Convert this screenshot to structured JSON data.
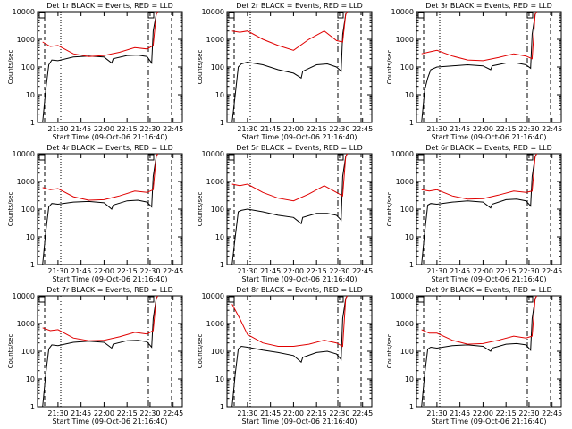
{
  "colors": {
    "events": "#000000",
    "lld": "#e00000",
    "background": "#ffffff"
  },
  "axes": {
    "xlabel": "Start Time (09-Oct-06 21:16:40)",
    "ylabel": "Counts/sec",
    "xticks": [
      "21:30",
      "21:45",
      "22:00",
      "22:15",
      "22:30",
      "22:45"
    ],
    "yticks": [
      "1",
      "10",
      "100",
      "1000",
      "10000"
    ]
  },
  "chart_data": [
    {
      "type": "line",
      "title": "Det 1r BLACK = Events, RED = LLD",
      "xlabel": "Start Time (09-Oct-06 21:16:40)",
      "ylabel": "Counts/sec",
      "yscale": "log",
      "ylim": [
        1,
        10000
      ],
      "x_ticks": [
        "21:30",
        "21:45",
        "22:00",
        "22:15",
        "22:30",
        "22:45"
      ],
      "y_ticks": [
        "1",
        "10",
        "100",
        "1000",
        "10000"
      ],
      "series": [
        {
          "name": "Events",
          "color": "#000000",
          "x": [
            "21:20",
            "21:22",
            "21:24",
            "21:26",
            "21:30",
            "21:40",
            "21:50",
            "22:00",
            "22:05",
            "22:06",
            "22:15",
            "22:22",
            "22:28",
            "22:31",
            "22:32",
            "22:34",
            "22:35"
          ],
          "values": [
            1,
            15,
            120,
            180,
            170,
            230,
            250,
            230,
            140,
            200,
            260,
            270,
            240,
            140,
            2000,
            8000,
            10000
          ]
        },
        {
          "name": "LLD",
          "color": "#e00000",
          "x": [
            "21:20",
            "21:25",
            "21:30",
            "21:40",
            "21:50",
            "22:00",
            "22:10",
            "22:20",
            "22:28",
            "22:32",
            "22:34",
            "22:35"
          ],
          "values": [
            800,
            550,
            600,
            300,
            240,
            260,
            340,
            500,
            450,
            600,
            8000,
            10000
          ]
        }
      ]
    },
    {
      "type": "line",
      "title": "Det 2r BLACK = Events, RED = LLD",
      "xlabel": "Start Time (09-Oct-06 21:16:40)",
      "ylabel": "Counts/sec",
      "yscale": "log",
      "ylim": [
        1,
        10000
      ],
      "x_ticks": [
        "21:30",
        "21:45",
        "22:00",
        "22:15",
        "22:30",
        "22:45"
      ],
      "y_ticks": [
        "1",
        "10",
        "100",
        "1000",
        "10000"
      ],
      "series": [
        {
          "name": "Events",
          "color": "#000000",
          "x": [
            "21:20",
            "21:22",
            "21:24",
            "21:26",
            "21:30",
            "21:40",
            "21:50",
            "22:00",
            "22:05",
            "22:06",
            "22:15",
            "22:22",
            "22:28",
            "22:31",
            "22:32",
            "22:34",
            "22:35"
          ],
          "values": [
            1,
            10,
            100,
            130,
            150,
            120,
            80,
            60,
            40,
            70,
            120,
            130,
            100,
            70,
            1500,
            8000,
            10000
          ]
        },
        {
          "name": "LLD",
          "color": "#e00000",
          "x": [
            "21:20",
            "21:25",
            "21:30",
            "21:40",
            "21:50",
            "22:00",
            "22:10",
            "22:20",
            "22:28",
            "22:32",
            "22:34",
            "22:35"
          ],
          "values": [
            2000,
            1800,
            2000,
            1000,
            600,
            400,
            1000,
            2000,
            900,
            800,
            8000,
            10000
          ]
        }
      ]
    },
    {
      "type": "line",
      "title": "Det 3r BLACK = Events, RED = LLD",
      "xlabel": "Start Time (09-Oct-06 21:16:40)",
      "ylabel": "Counts/sec",
      "yscale": "log",
      "ylim": [
        1,
        10000
      ],
      "x_ticks": [
        "21:30",
        "21:45",
        "22:00",
        "22:15",
        "22:30",
        "22:45"
      ],
      "y_ticks": [
        "1",
        "10",
        "100",
        "1000",
        "10000"
      ],
      "series": [
        {
          "name": "Events",
          "color": "#000000",
          "x": [
            "21:20",
            "21:22",
            "21:24",
            "21:26",
            "21:30",
            "21:40",
            "21:50",
            "22:00",
            "22:05",
            "22:06",
            "22:15",
            "22:22",
            "22:28",
            "22:31",
            "22:32",
            "22:34",
            "22:35"
          ],
          "values": [
            1,
            15,
            40,
            80,
            100,
            110,
            120,
            110,
            80,
            110,
            140,
            140,
            120,
            90,
            1500,
            8000,
            10000
          ]
        },
        {
          "name": "LLD",
          "color": "#e00000",
          "x": [
            "21:20",
            "21:25",
            "21:30",
            "21:40",
            "21:50",
            "22:00",
            "22:10",
            "22:20",
            "22:28",
            "22:32",
            "22:34",
            "22:35"
          ],
          "values": [
            300,
            350,
            400,
            250,
            180,
            170,
            220,
            300,
            250,
            200,
            8000,
            10000
          ]
        }
      ]
    },
    {
      "type": "line",
      "title": "Det 4r BLACK = Events, RED = LLD",
      "xlabel": "Start Time (09-Oct-06 21:16:40)",
      "ylabel": "Counts/sec",
      "yscale": "log",
      "ylim": [
        1,
        10000
      ],
      "x_ticks": [
        "21:30",
        "21:45",
        "22:00",
        "22:15",
        "22:30",
        "22:45"
      ],
      "y_ticks": [
        "1",
        "10",
        "100",
        "1000",
        "10000"
      ],
      "series": [
        {
          "name": "Events",
          "color": "#000000",
          "x": [
            "21:20",
            "21:22",
            "21:24",
            "21:26",
            "21:30",
            "21:40",
            "21:50",
            "22:00",
            "22:05",
            "22:06",
            "22:15",
            "22:22",
            "22:28",
            "22:31",
            "22:32",
            "22:34",
            "22:35"
          ],
          "values": [
            1,
            15,
            120,
            160,
            150,
            180,
            190,
            170,
            100,
            140,
            200,
            210,
            180,
            120,
            1500,
            8000,
            10000
          ]
        },
        {
          "name": "LLD",
          "color": "#e00000",
          "x": [
            "21:20",
            "21:25",
            "21:30",
            "21:40",
            "21:50",
            "22:00",
            "22:10",
            "22:20",
            "22:28",
            "22:32",
            "22:34",
            "22:35"
          ],
          "values": [
            600,
            500,
            550,
            280,
            210,
            220,
            300,
            450,
            400,
            500,
            8000,
            10000
          ]
        }
      ]
    },
    {
      "type": "line",
      "title": "Det 5r BLACK = Events, RED = LLD",
      "xlabel": "Start Time (09-Oct-06 21:16:40)",
      "ylabel": "Counts/sec",
      "yscale": "log",
      "ylim": [
        1,
        10000
      ],
      "x_ticks": [
        "21:30",
        "21:45",
        "22:00",
        "22:15",
        "22:30",
        "22:45"
      ],
      "y_ticks": [
        "1",
        "10",
        "100",
        "1000",
        "10000"
      ],
      "series": [
        {
          "name": "Events",
          "color": "#000000",
          "x": [
            "21:20",
            "21:22",
            "21:24",
            "21:26",
            "21:30",
            "21:40",
            "21:50",
            "22:00",
            "22:05",
            "22:06",
            "22:15",
            "22:22",
            "22:28",
            "22:31",
            "22:32",
            "22:34",
            "22:35"
          ],
          "values": [
            1,
            10,
            80,
            90,
            100,
            80,
            60,
            50,
            30,
            50,
            70,
            70,
            60,
            40,
            1500,
            8000,
            10000
          ]
        },
        {
          "name": "LLD",
          "color": "#e00000",
          "x": [
            "21:20",
            "21:25",
            "21:30",
            "21:40",
            "21:50",
            "22:00",
            "22:10",
            "22:20",
            "22:28",
            "22:32",
            "22:34",
            "22:35"
          ],
          "values": [
            800,
            700,
            800,
            400,
            250,
            200,
            350,
            700,
            400,
            300,
            8000,
            10000
          ]
        }
      ]
    },
    {
      "type": "line",
      "title": "Det 6r BLACK = Events, RED = LLD",
      "xlabel": "Start Time (09-Oct-06 21:16:40)",
      "ylabel": "Counts/sec",
      "yscale": "log",
      "ylim": [
        1,
        10000
      ],
      "x_ticks": [
        "21:30",
        "21:45",
        "22:00",
        "22:15",
        "22:30",
        "22:45"
      ],
      "y_ticks": [
        "1",
        "10",
        "100",
        "1000",
        "10000"
      ],
      "series": [
        {
          "name": "Events",
          "color": "#000000",
          "x": [
            "21:20",
            "21:22",
            "21:24",
            "21:26",
            "21:30",
            "21:40",
            "21:50",
            "22:00",
            "22:05",
            "22:06",
            "22:15",
            "22:22",
            "22:28",
            "22:31",
            "22:32",
            "22:34",
            "22:35"
          ],
          "values": [
            1,
            15,
            140,
            160,
            150,
            180,
            200,
            180,
            110,
            150,
            220,
            230,
            200,
            130,
            1500,
            8000,
            10000
          ]
        },
        {
          "name": "LLD",
          "color": "#e00000",
          "x": [
            "21:20",
            "21:25",
            "21:30",
            "21:40",
            "21:50",
            "22:00",
            "22:10",
            "22:20",
            "22:28",
            "22:32",
            "22:34",
            "22:35"
          ],
          "values": [
            500,
            450,
            500,
            300,
            230,
            240,
            320,
            450,
            400,
            450,
            8000,
            10000
          ]
        }
      ]
    },
    {
      "type": "line",
      "title": "Det 7r BLACK = Events, RED = LLD",
      "xlabel": "Start Time (09-Oct-06 21:16:40)",
      "ylabel": "Counts/sec",
      "yscale": "log",
      "ylim": [
        1,
        10000
      ],
      "x_ticks": [
        "21:30",
        "21:45",
        "22:00",
        "22:15",
        "22:30",
        "22:45"
      ],
      "y_ticks": [
        "1",
        "10",
        "100",
        "1000",
        "10000"
      ],
      "series": [
        {
          "name": "Events",
          "color": "#000000",
          "x": [
            "21:20",
            "21:22",
            "21:24",
            "21:26",
            "21:30",
            "21:40",
            "21:50",
            "22:00",
            "22:05",
            "22:06",
            "22:15",
            "22:22",
            "22:28",
            "22:31",
            "22:32",
            "22:34",
            "22:35"
          ],
          "values": [
            1,
            15,
            120,
            170,
            160,
            210,
            230,
            210,
            130,
            180,
            240,
            250,
            220,
            140,
            1500,
            8000,
            10000
          ]
        },
        {
          "name": "LLD",
          "color": "#e00000",
          "x": [
            "21:20",
            "21:25",
            "21:30",
            "21:40",
            "21:50",
            "22:00",
            "22:10",
            "22:20",
            "22:28",
            "22:32",
            "22:34",
            "22:35"
          ],
          "values": [
            700,
            550,
            600,
            300,
            240,
            250,
            330,
            480,
            420,
            550,
            8000,
            10000
          ]
        }
      ]
    },
    {
      "type": "line",
      "title": "Det 8r BLACK = Events, RED = LLD",
      "xlabel": "Start Time (09-Oct-06 21:16:40)",
      "ylabel": "Counts/sec",
      "yscale": "log",
      "ylim": [
        1,
        10000
      ],
      "x_ticks": [
        "21:30",
        "21:45",
        "22:00",
        "22:15",
        "22:30",
        "22:45"
      ],
      "y_ticks": [
        "1",
        "10",
        "100",
        "1000",
        "10000"
      ],
      "series": [
        {
          "name": "Events",
          "color": "#000000",
          "x": [
            "21:20",
            "21:22",
            "21:24",
            "21:26",
            "21:30",
            "21:40",
            "21:50",
            "22:00",
            "22:05",
            "22:06",
            "22:15",
            "22:22",
            "22:28",
            "22:31",
            "22:32",
            "22:34",
            "22:35"
          ],
          "values": [
            1,
            15,
            120,
            150,
            140,
            110,
            90,
            70,
            40,
            60,
            90,
            100,
            80,
            50,
            1500,
            8000,
            10000
          ]
        },
        {
          "name": "LLD",
          "color": "#e00000",
          "x": [
            "21:20",
            "21:25",
            "21:30",
            "21:40",
            "21:50",
            "22:00",
            "22:10",
            "22:20",
            "22:28",
            "22:32",
            "22:34",
            "22:35"
          ],
          "values": [
            5000,
            1500,
            400,
            200,
            150,
            150,
            180,
            250,
            200,
            150,
            8000,
            10000
          ]
        }
      ]
    },
    {
      "type": "line",
      "title": "Det 9r BLACK = Events, RED = LLD",
      "xlabel": "Start Time (09-Oct-06 21:16:40)",
      "ylabel": "Counts/sec",
      "yscale": "log",
      "ylim": [
        1,
        10000
      ],
      "x_ticks": [
        "21:30",
        "21:45",
        "22:00",
        "22:15",
        "22:30",
        "22:45"
      ],
      "y_ticks": [
        "1",
        "10",
        "100",
        "1000",
        "10000"
      ],
      "series": [
        {
          "name": "Events",
          "color": "#000000",
          "x": [
            "21:20",
            "21:22",
            "21:24",
            "21:26",
            "21:30",
            "21:40",
            "21:50",
            "22:00",
            "22:05",
            "22:06",
            "22:15",
            "22:22",
            "22:28",
            "22:31",
            "22:32",
            "22:34",
            "22:35"
          ],
          "values": [
            1,
            15,
            120,
            140,
            130,
            160,
            170,
            150,
            100,
            130,
            180,
            190,
            170,
            110,
            1500,
            8000,
            10000
          ]
        },
        {
          "name": "LLD",
          "color": "#e00000",
          "x": [
            "21:20",
            "21:25",
            "21:30",
            "21:40",
            "21:50",
            "22:00",
            "22:10",
            "22:20",
            "22:28",
            "22:32",
            "22:34",
            "22:35"
          ],
          "values": [
            600,
            450,
            450,
            250,
            180,
            190,
            250,
            350,
            300,
            350,
            8000,
            10000
          ]
        }
      ]
    }
  ]
}
